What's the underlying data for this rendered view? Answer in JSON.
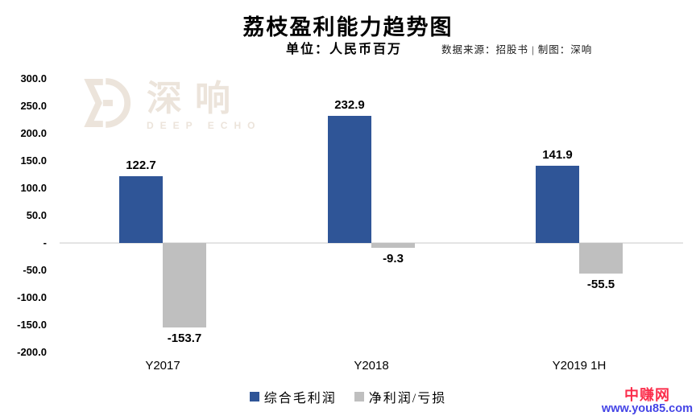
{
  "header": {
    "title": "荔枝盈利能力趋势图",
    "subtitle": "单位：人民币百万",
    "source": "数据来源：招股书 | 制图：深响"
  },
  "watermark": {
    "logo_text": "深响",
    "logo_subtext": "DEEP ECHO",
    "color": "#ece4db"
  },
  "chart_data": {
    "type": "bar",
    "title": "荔枝盈利能力趋势图",
    "subtitle": "单位：人民币百万",
    "categories": [
      "Y2017",
      "Y2018",
      "Y2019 1H"
    ],
    "series": [
      {
        "name": "综合毛利润",
        "color": "#2F5597",
        "values": [
          122.7,
          232.9,
          141.9
        ]
      },
      {
        "name": "净利润/亏损",
        "color": "#BFBFBF",
        "values": [
          -153.7,
          -9.3,
          -55.5
        ]
      }
    ],
    "ylim": [
      -200,
      300
    ],
    "y_ticks": [
      {
        "v": 300,
        "label": "300.0"
      },
      {
        "v": 250,
        "label": "250.0"
      },
      {
        "v": 200,
        "label": "200.0"
      },
      {
        "v": 150,
        "label": "150.0"
      },
      {
        "v": 100,
        "label": "100.0"
      },
      {
        "v": 50,
        "label": "50.0"
      },
      {
        "v": 0,
        "label": "-"
      },
      {
        "v": -50,
        "label": "-50.0"
      },
      {
        "v": -100,
        "label": "-100.0"
      },
      {
        "v": -150,
        "label": "-150.0"
      },
      {
        "v": -200,
        "label": "-200.0"
      }
    ],
    "grid": false,
    "legend_position": "bottom",
    "axis_line_color": "#e4e4e4"
  },
  "footer": {
    "site_name": "中赚网",
    "site_url": "www.you85.com",
    "site_name_color": "#fb2e4c",
    "site_url_color": "#4444e6"
  }
}
